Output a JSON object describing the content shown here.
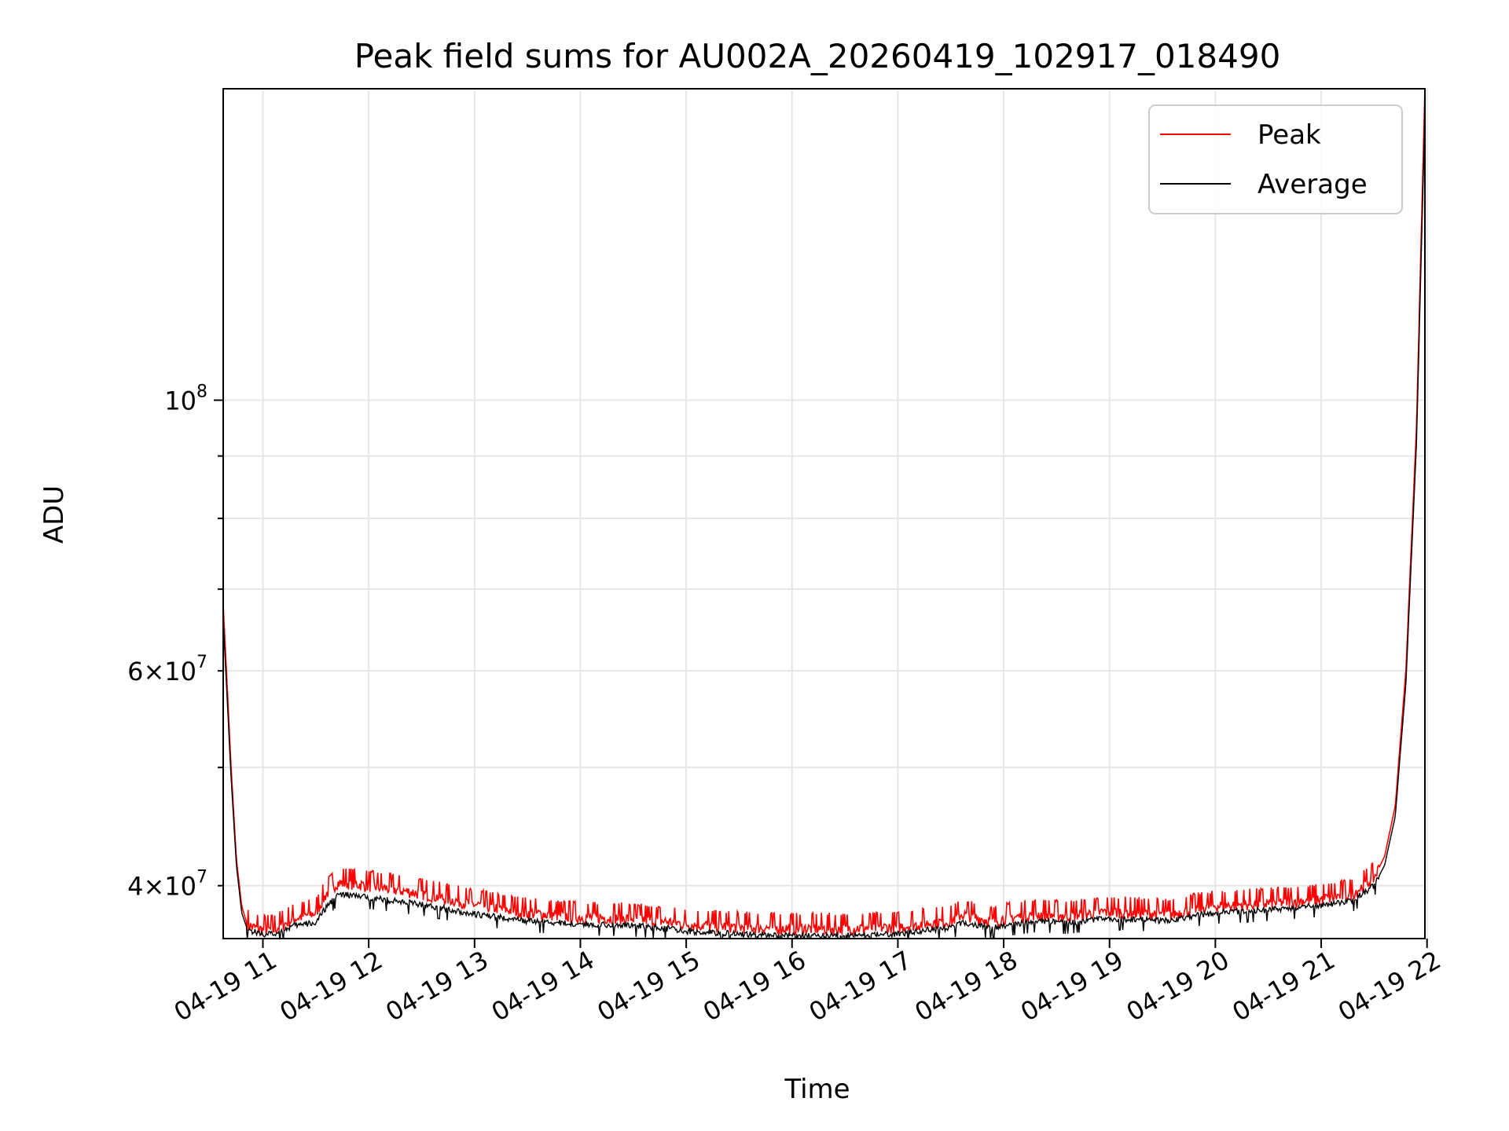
{
  "chart_data": {
    "type": "line",
    "title": "Peak field sums for AU002A_20260419_102917_018490",
    "xlabel": "Time",
    "ylabel": "ADU",
    "x_axis": {
      "kind": "datetime",
      "date": "2026-04-19",
      "range_hours": [
        10.625,
        21.98
      ],
      "ticks": [
        {
          "hour": 11,
          "label": "04-19 11"
        },
        {
          "hour": 12,
          "label": "04-19 12"
        },
        {
          "hour": 13,
          "label": "04-19 13"
        },
        {
          "hour": 14,
          "label": "04-19 14"
        },
        {
          "hour": 15,
          "label": "04-19 15"
        },
        {
          "hour": 16,
          "label": "04-19 16"
        },
        {
          "hour": 17,
          "label": "04-19 17"
        },
        {
          "hour": 18,
          "label": "04-19 18"
        },
        {
          "hour": 19,
          "label": "04-19 19"
        },
        {
          "hour": 20,
          "label": "04-19 20"
        },
        {
          "hour": 21,
          "label": "04-19 21"
        },
        {
          "hour": 22,
          "label": "04-19 22"
        }
      ]
    },
    "y_axis": {
      "scale": "log",
      "range": [
        36200000,
        180000000
      ],
      "major_ticks": [
        {
          "value": 100000000,
          "base": "10",
          "exp": "8"
        }
      ],
      "minor_labeled_ticks": [
        {
          "value": 40000000,
          "mant": "4",
          "base": "10",
          "exp": "7"
        },
        {
          "value": 60000000,
          "mant": "6",
          "base": "10",
          "exp": "7"
        }
      ],
      "minor_ticks": [
        40000000,
        50000000,
        60000000,
        70000000,
        80000000,
        90000000
      ]
    },
    "grid": true,
    "legend_position": "top-right",
    "series": [
      {
        "name": "Peak",
        "color": "#ff0000",
        "hours": [
          10.625,
          10.7,
          10.75,
          10.8,
          10.85,
          10.9,
          11.0,
          11.1,
          11.2,
          11.3,
          11.4,
          11.5,
          11.6,
          11.7,
          11.8,
          12.0,
          12.5,
          13.0,
          13.5,
          14.0,
          14.5,
          14.8,
          15.0,
          15.5,
          16.0,
          16.5,
          17.0,
          17.3,
          17.5,
          17.6,
          17.9,
          18.0,
          18.3,
          18.6,
          19.0,
          19.3,
          19.6,
          19.8,
          20.0,
          20.5,
          21.0,
          21.3,
          21.5,
          21.6,
          21.7,
          21.8,
          21.9,
          21.98
        ],
        "values": [
          68000000,
          50000000,
          42000000,
          38500000,
          37200000,
          37000000,
          36800000,
          36800000,
          37200000,
          37600000,
          37800000,
          38000000,
          39400000,
          40200000,
          40200000,
          40000000,
          39400000,
          38600000,
          38000000,
          37700000,
          37600000,
          37400000,
          37200000,
          37000000,
          36900000,
          36900000,
          37000000,
          37300000,
          37400000,
          37900000,
          37400000,
          37600000,
          37900000,
          37800000,
          38100000,
          38000000,
          37900000,
          38300000,
          38500000,
          38700000,
          39000000,
          39400000,
          40600000,
          42300000,
          46500000,
          60000000,
          95000000,
          180000000
        ]
      },
      {
        "name": "Average",
        "color": "#000000",
        "hours": [
          10.625,
          10.7,
          10.75,
          10.8,
          10.85,
          10.9,
          11.0,
          11.1,
          11.2,
          11.3,
          11.4,
          11.5,
          11.6,
          11.7,
          11.8,
          12.0,
          12.5,
          13.0,
          13.5,
          14.0,
          14.5,
          14.8,
          15.0,
          15.5,
          16.0,
          16.5,
          17.0,
          17.3,
          17.5,
          17.6,
          17.9,
          18.0,
          18.3,
          18.6,
          19.0,
          19.3,
          19.6,
          19.8,
          20.0,
          20.5,
          21.0,
          21.3,
          21.5,
          21.6,
          21.7,
          21.8,
          21.9,
          21.98
        ],
        "values": [
          66000000,
          49000000,
          41500000,
          38000000,
          36900000,
          36700000,
          36500000,
          36500000,
          36800000,
          37100000,
          37200000,
          37300000,
          38400000,
          39300000,
          39300000,
          39100000,
          38600000,
          37900000,
          37400000,
          37200000,
          37100000,
          36900000,
          36700000,
          36500000,
          36400000,
          36400000,
          36500000,
          36800000,
          36900000,
          37300000,
          36900000,
          37100000,
          37400000,
          37300000,
          37600000,
          37500000,
          37400000,
          37800000,
          38000000,
          38200000,
          38500000,
          38900000,
          40000000,
          41600000,
          45600000,
          58500000,
          92000000,
          172000000
        ]
      }
    ]
  }
}
